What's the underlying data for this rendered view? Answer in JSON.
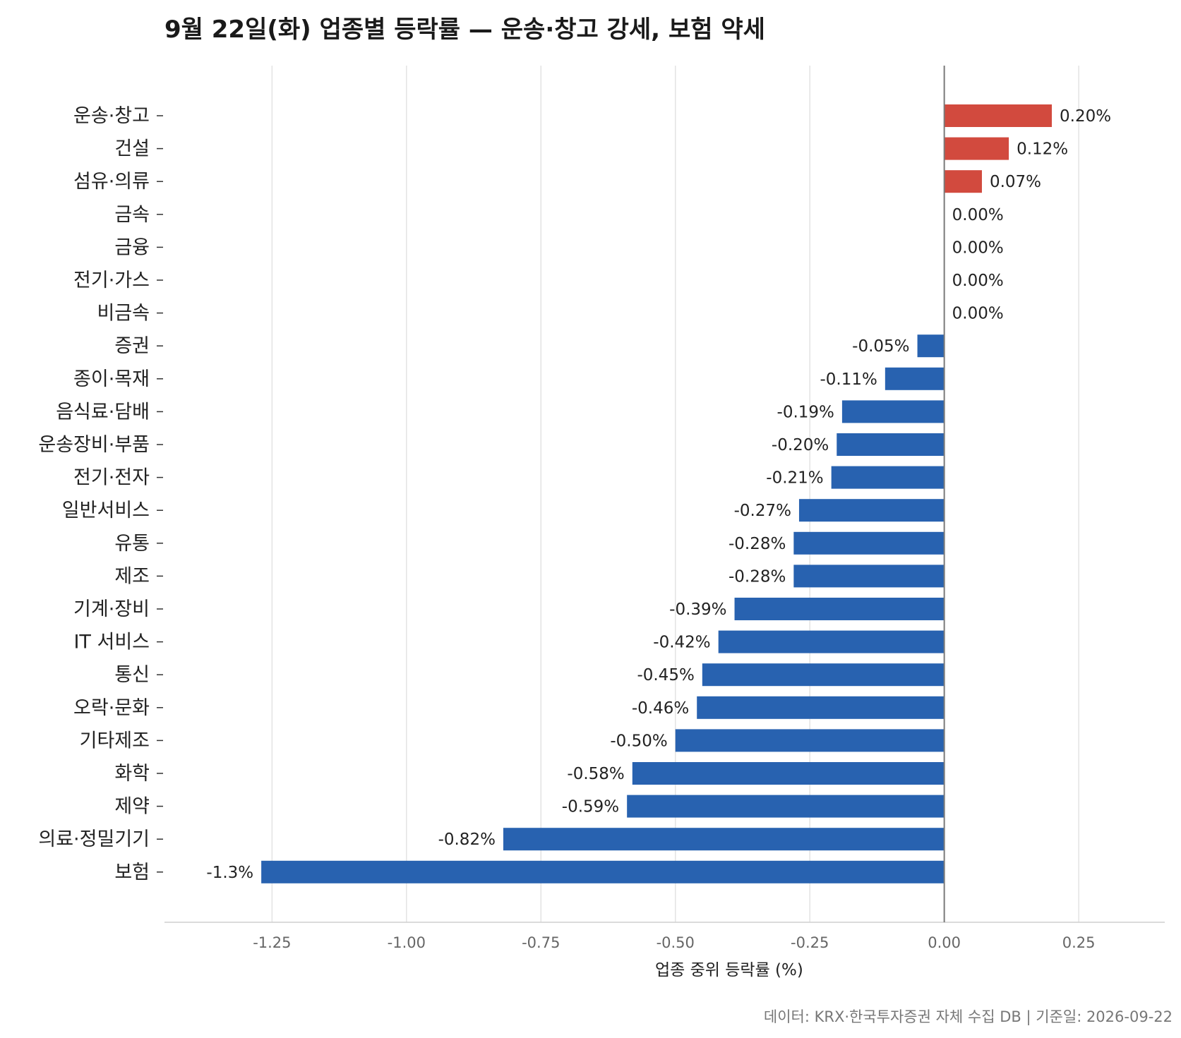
{
  "chart_data": {
    "type": "bar",
    "orientation": "horizontal",
    "title": "9월 22일(화) 업종별 등락률 — 운송·창고 강세, 보험 약세",
    "xlabel": "업종 중위 등락률 (%)",
    "ylabel": "",
    "xlim": [
      -1.45,
      0.41
    ],
    "xticks": [
      -1.25,
      -1.0,
      -0.75,
      -0.5,
      -0.25,
      0.0,
      0.25
    ],
    "xtick_labels": [
      "-1.25",
      "-1.00",
      "-0.75",
      "-0.50",
      "-0.25",
      "0.00",
      "0.25"
    ],
    "grid": "vertical",
    "categories": [
      "운송·창고",
      "건설",
      "섬유·의류",
      "금속",
      "금융",
      "전기·가스",
      "비금속",
      "증권",
      "종이·목재",
      "음식료·담배",
      "운송장비·부품",
      "전기·전자",
      "일반서비스",
      "유통",
      "제조",
      "기계·장비",
      "IT 서비스",
      "통신",
      "오락·문화",
      "기타제조",
      "화학",
      "제약",
      "의료·정밀기기",
      "보험"
    ],
    "values": [
      0.2,
      0.12,
      0.07,
      0.0,
      0.0,
      0.0,
      0.0,
      -0.05,
      -0.11,
      -0.19,
      -0.2,
      -0.21,
      -0.27,
      -0.28,
      -0.28,
      -0.39,
      -0.42,
      -0.45,
      -0.46,
      -0.5,
      -0.58,
      -0.59,
      -0.82,
      -1.27
    ],
    "value_labels": [
      "0.20%",
      "0.12%",
      "0.07%",
      "0.00%",
      "0.00%",
      "0.00%",
      "0.00%",
      "-0.05%",
      "-0.11%",
      "-0.19%",
      "-0.20%",
      "-0.21%",
      "-0.27%",
      "-0.28%",
      "-0.28%",
      "-0.39%",
      "-0.42%",
      "-0.45%",
      "-0.46%",
      "-0.50%",
      "-0.58%",
      "-0.59%",
      "-0.82%",
      "-1.3%"
    ],
    "colors": {
      "positive": "#d24a3e",
      "negative": "#2862b0"
    }
  },
  "footer": "데이터: KRX·한국투자증권 자체 수집 DB  |  기준일: 2026-09-22"
}
